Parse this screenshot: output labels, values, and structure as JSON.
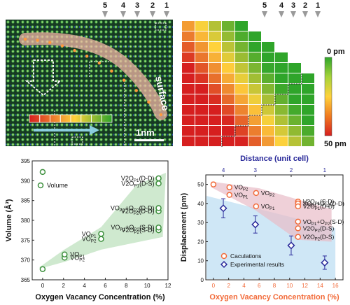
{
  "stem": {
    "surface_label": "surface",
    "scale_label": "1nm",
    "col_markers": [
      "5",
      "4",
      "3",
      "2",
      "1"
    ]
  },
  "heatmap": {
    "col_markers": [
      "5",
      "4",
      "3",
      "2",
      "1"
    ],
    "colorbar_top": "0 pm",
    "colorbar_bottom": "50 pm",
    "colors": {
      "low": "#d61f1f",
      "mid": "#ffd23c",
      "high": "#2fa52a"
    }
  },
  "chart_data": [
    {
      "type": "scatter",
      "xlabel": "Oxygen Vacancy Concentration (%)",
      "ylabel": "Volume (Å³)",
      "xlim": [
        -1,
        12
      ],
      "ylim": [
        365,
        395
      ],
      "xticks": [
        "0",
        "2",
        "4",
        "6",
        "8",
        "10",
        "12"
      ],
      "yticks": [
        "365",
        "370",
        "375",
        "380",
        "385",
        "390",
        "395"
      ],
      "legend": "Volume",
      "marker_color": "#3c8f3c",
      "points": [
        {
          "x": 0,
          "y": 367.7,
          "label": ""
        },
        {
          "x": 2.1,
          "y": 370.6,
          "label": "VO_P2"
        },
        {
          "x": 2.1,
          "y": 371.4,
          "label": "VO_P1"
        },
        {
          "x": 5.6,
          "y": 375.3,
          "label": "VO_P2"
        },
        {
          "x": 5.6,
          "y": 376.6,
          "label": "VO_P1"
        },
        {
          "x": 11.1,
          "y": 377.5,
          "label": "V2O_P2(S-D)"
        },
        {
          "x": 11.1,
          "y": 378.2,
          "label": "VO_P1+O_P2(S-D)"
        },
        {
          "x": 11.1,
          "y": 382.3,
          "label": "V2O_P2(D-D)"
        },
        {
          "x": 11.1,
          "y": 383.1,
          "label": "VO_P1+O_P2(D-D)"
        },
        {
          "x": 11.1,
          "y": 389.3,
          "label": "V2O_P1(D-S)"
        },
        {
          "x": 11.1,
          "y": 390.6,
          "label": "V2O_P1(D-D)"
        }
      ]
    },
    {
      "type": "scatter",
      "xlabel": "Oxygen Vacancy Concentration (%)",
      "x2label": "Distance (unit cell)",
      "ylabel": "Displacement (pm)",
      "xlim": [
        -1,
        17
      ],
      "ylim": [
        0,
        55
      ],
      "xticks": [
        "0",
        "2",
        "4",
        "6",
        "8",
        "10",
        "12",
        "14",
        "16"
      ],
      "yticks": [
        "0",
        "10",
        "20",
        "30",
        "40",
        "50"
      ],
      "x2ticks": [
        "4",
        "3",
        "2",
        "1"
      ],
      "colors": {
        "calc": "#f26b3a",
        "exp": "#2a2a9a"
      },
      "legend": [
        "Caculations",
        "Experimental results"
      ],
      "calculations": [
        {
          "x": 0,
          "y": 50,
          "label": ""
        },
        {
          "x": 2.1,
          "y": 48.5,
          "label": "VO_P2"
        },
        {
          "x": 2.1,
          "y": 44.5,
          "label": "VO_P1"
        },
        {
          "x": 5.6,
          "y": 45.5,
          "label": "VO_P2"
        },
        {
          "x": 5.6,
          "y": 38.5,
          "label": "VO_P1"
        },
        {
          "x": 11.1,
          "y": 41,
          "label": "V2O_P1(S-D)"
        },
        {
          "x": 11.1,
          "y": 40,
          "label": "VO_P1+O_P2(D-D)"
        },
        {
          "x": 11.1,
          "y": 38.5,
          "label": "V2O_P1(D-D)"
        },
        {
          "x": 11.1,
          "y": 30.5,
          "label": "VO_P1+O_P2(S-D)"
        },
        {
          "x": 11.1,
          "y": 27,
          "label": "V2O_P2(D-S)"
        },
        {
          "x": 11.1,
          "y": 22.5,
          "label": "V2O_P2(D-S)"
        }
      ],
      "experimental": [
        {
          "x": 1.3,
          "y": 37.5,
          "err": 5
        },
        {
          "x": 5.5,
          "y": 29,
          "err": 4.5
        },
        {
          "x": 10.2,
          "y": 18,
          "err": 5
        },
        {
          "x": 14.6,
          "y": 9,
          "err": 3.5
        }
      ]
    }
  ]
}
